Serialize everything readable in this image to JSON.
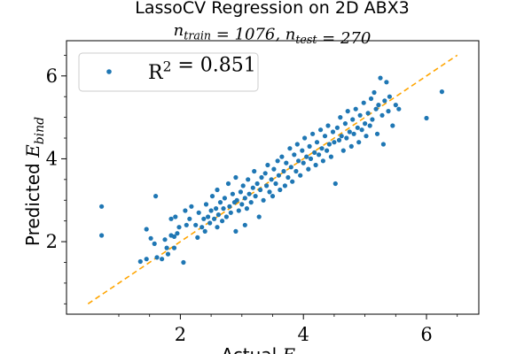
{
  "chart_data": {
    "type": "scatter",
    "title": "LassoCV Regression on 2D ABX3",
    "subtitle": "n_train = 1076, n_test = 270",
    "xlabel": "Actual E_bind",
    "ylabel": "Predicted E_bind",
    "xlim": [
      0.15,
      6.85
    ],
    "ylim": [
      0.25,
      6.85
    ],
    "x_ticks": [
      2,
      4,
      6
    ],
    "y_ticks": [
      2,
      4,
      6
    ],
    "x_minor_ticks": [
      1.0,
      1.5,
      2.5,
      3.0,
      3.5,
      4.5,
      5.0,
      5.5,
      6.5
    ],
    "y_minor_ticks": [
      0.5,
      1.0,
      1.5,
      2.5,
      3.0,
      3.5,
      4.5,
      5.0,
      5.5,
      6.5
    ],
    "legend": {
      "label": "R^2 = 0.851",
      "position": "upper-left"
    },
    "grid": false,
    "reference_line": {
      "style": "dashed",
      "color": "#ffa500",
      "from": [
        0.5,
        0.5
      ],
      "to": [
        6.5,
        6.5
      ]
    },
    "colors": {
      "points": "#1f77b4",
      "reference_line": "#ffa500"
    },
    "series": [
      {
        "name": "R^2 = 0.851",
        "points": [
          [
            0.72,
            2.85
          ],
          [
            0.72,
            2.15
          ],
          [
            1.35,
            1.52
          ],
          [
            1.45,
            1.58
          ],
          [
            1.45,
            2.3
          ],
          [
            1.52,
            2.08
          ],
          [
            1.58,
            1.95
          ],
          [
            1.6,
            3.1
          ],
          [
            1.62,
            1.62
          ],
          [
            1.7,
            1.58
          ],
          [
            1.75,
            2.05
          ],
          [
            1.78,
            1.85
          ],
          [
            1.8,
            1.7
          ],
          [
            1.85,
            2.15
          ],
          [
            1.85,
            2.55
          ],
          [
            1.9,
            1.85
          ],
          [
            1.9,
            2.12
          ],
          [
            1.92,
            2.6
          ],
          [
            1.95,
            2.2
          ],
          [
            1.98,
            2.35
          ],
          [
            2.05,
            1.5
          ],
          [
            2.08,
            2.75
          ],
          [
            2.1,
            2.4
          ],
          [
            2.15,
            2.55
          ],
          [
            2.18,
            2.85
          ],
          [
            2.25,
            2.4
          ],
          [
            2.28,
            2.1
          ],
          [
            2.3,
            2.7
          ],
          [
            2.35,
            2.35
          ],
          [
            2.38,
            2.55
          ],
          [
            2.4,
            2.25
          ],
          [
            2.42,
            2.9
          ],
          [
            2.45,
            2.6
          ],
          [
            2.48,
            2.45
          ],
          [
            2.5,
            2.75
          ],
          [
            2.52,
            3.1
          ],
          [
            2.55,
            2.55
          ],
          [
            2.58,
            2.8
          ],
          [
            2.6,
            2.35
          ],
          [
            2.6,
            3.25
          ],
          [
            2.62,
            2.65
          ],
          [
            2.65,
            2.95
          ],
          [
            2.68,
            2.5
          ],
          [
            2.7,
            2.8
          ],
          [
            2.72,
            3.05
          ],
          [
            2.75,
            2.6
          ],
          [
            2.78,
            3.4
          ],
          [
            2.8,
            2.85
          ],
          [
            2.82,
            2.7
          ],
          [
            2.85,
            3.15
          ],
          [
            2.88,
            2.95
          ],
          [
            2.9,
            2.25
          ],
          [
            2.9,
            3.55
          ],
          [
            2.92,
            3.0
          ],
          [
            2.95,
            2.75
          ],
          [
            2.98,
            3.2
          ],
          [
            3.0,
            2.9
          ],
          [
            3.02,
            3.35
          ],
          [
            3.05,
            3.05
          ],
          [
            3.05,
            2.4
          ],
          [
            3.08,
            2.8
          ],
          [
            3.1,
            3.5
          ],
          [
            3.12,
            3.15
          ],
          [
            3.15,
            2.95
          ],
          [
            3.18,
            3.3
          ],
          [
            3.2,
            3.7
          ],
          [
            3.22,
            3.1
          ],
          [
            3.25,
            3.4
          ],
          [
            3.28,
            2.6
          ],
          [
            3.3,
            3.25
          ],
          [
            3.32,
            3.55
          ],
          [
            3.35,
            3.0
          ],
          [
            3.38,
            3.65
          ],
          [
            3.4,
            3.35
          ],
          [
            3.42,
            3.85
          ],
          [
            3.45,
            3.2
          ],
          [
            3.48,
            3.5
          ],
          [
            3.5,
            3.1
          ],
          [
            3.52,
            3.75
          ],
          [
            3.55,
            3.4
          ],
          [
            3.58,
            3.95
          ],
          [
            3.6,
            3.6
          ],
          [
            3.62,
            3.25
          ],
          [
            3.65,
            4.05
          ],
          [
            3.68,
            3.7
          ],
          [
            3.7,
            3.35
          ],
          [
            3.72,
            3.9
          ],
          [
            3.75,
            3.55
          ],
          [
            3.78,
            4.25
          ],
          [
            3.8,
            3.8
          ],
          [
            3.82,
            3.45
          ],
          [
            3.85,
            4.1
          ],
          [
            3.88,
            3.7
          ],
          [
            3.9,
            4.35
          ],
          [
            3.92,
            3.95
          ],
          [
            3.95,
            3.6
          ],
          [
            3.98,
            4.2
          ],
          [
            4.0,
            3.9
          ],
          [
            4.02,
            4.5
          ],
          [
            4.05,
            4.05
          ],
          [
            4.08,
            3.75
          ],
          [
            4.1,
            4.3
          ],
          [
            4.12,
            4.0
          ],
          [
            4.15,
            4.6
          ],
          [
            4.18,
            4.15
          ],
          [
            4.2,
            3.85
          ],
          [
            4.22,
            4.4
          ],
          [
            4.25,
            4.1
          ],
          [
            4.28,
            4.7
          ],
          [
            4.3,
            4.25
          ],
          [
            4.32,
            3.95
          ],
          [
            4.35,
            4.55
          ],
          [
            4.38,
            4.2
          ],
          [
            4.4,
            4.8
          ],
          [
            4.42,
            4.35
          ],
          [
            4.45,
            4.05
          ],
          [
            4.48,
            4.65
          ],
          [
            4.5,
            4.4
          ],
          [
            4.52,
            3.4
          ],
          [
            4.55,
            4.75
          ],
          [
            4.58,
            4.45
          ],
          [
            4.6,
            5.0
          ],
          [
            4.62,
            4.55
          ],
          [
            4.65,
            4.2
          ],
          [
            4.68,
            4.85
          ],
          [
            4.7,
            4.5
          ],
          [
            4.72,
            5.15
          ],
          [
            4.75,
            4.65
          ],
          [
            4.78,
            4.3
          ],
          [
            4.8,
            4.95
          ],
          [
            4.82,
            4.6
          ],
          [
            4.85,
            5.2
          ],
          [
            4.88,
            4.75
          ],
          [
            4.9,
            4.4
          ],
          [
            4.92,
            5.05
          ],
          [
            4.95,
            4.7
          ],
          [
            4.98,
            5.35
          ],
          [
            5.0,
            4.85
          ],
          [
            5.02,
            4.55
          ],
          [
            5.05,
            5.1
          ],
          [
            5.08,
            4.8
          ],
          [
            5.1,
            5.45
          ],
          [
            5.12,
            4.95
          ],
          [
            5.15,
            5.6
          ],
          [
            5.18,
            5.2
          ],
          [
            5.2,
            4.6
          ],
          [
            5.22,
            5.3
          ],
          [
            5.25,
            5.95
          ],
          [
            5.28,
            5.05
          ],
          [
            5.3,
            4.35
          ],
          [
            5.32,
            5.4
          ],
          [
            5.35,
            5.85
          ],
          [
            5.38,
            5.15
          ],
          [
            5.4,
            5.5
          ],
          [
            5.45,
            4.8
          ],
          [
            5.5,
            5.3
          ],
          [
            5.55,
            5.2
          ],
          [
            6.0,
            4.98
          ],
          [
            6.25,
            5.62
          ]
        ]
      }
    ]
  }
}
